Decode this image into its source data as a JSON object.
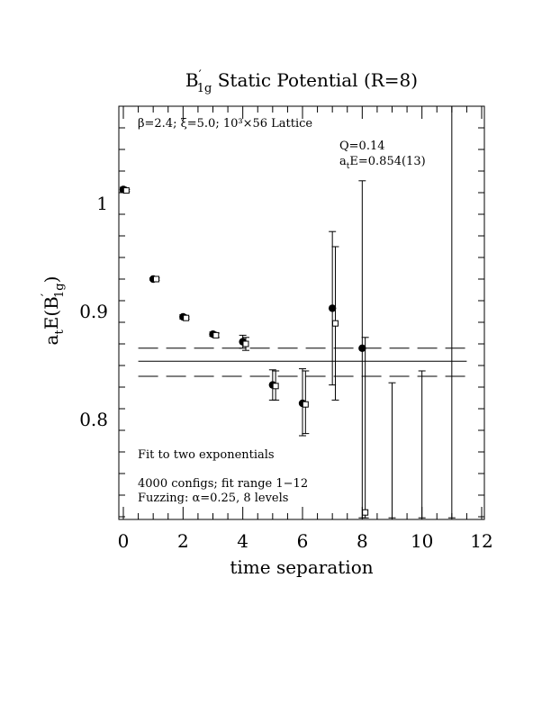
{
  "chart_data": {
    "type": "scatter",
    "title": {
      "prefix": "B",
      "prime": "′",
      "subscript": "1g",
      "suffix": " Static Potential (R=8)"
    },
    "xlabel": "time separation",
    "ylabel": {
      "a": "a",
      "a_sub": "t",
      "E": "E(B",
      "prime": "′",
      "sub": "1g",
      "close": ")"
    },
    "xlim": [
      0,
      12
    ],
    "ylim": [
      0.709,
      1.09
    ],
    "x_ticks": [
      0,
      2,
      4,
      6,
      8,
      10,
      12
    ],
    "y_ticks": [
      0.8,
      0.9,
      1
    ],
    "y_tick_labels": [
      "0.8",
      "0.9",
      "1"
    ],
    "annotations": {
      "lattice": "β=2.4; ξ=5.0; 10³×56 Lattice",
      "q": "Q=0.14",
      "energy_prefix": "a",
      "energy_sub": "t",
      "energy_rest": "E=0.854(13)",
      "fit_line1": "Fit to two exponentials",
      "fit_line2": "4000 configs; fit range 1−12",
      "fit_line3": "Fuzzing: α=0.25, 8 levels"
    },
    "fit": {
      "value": 0.854,
      "upper": 0.866,
      "lower": 0.84,
      "x_start": 0.5,
      "x_end": 11.5
    },
    "series": [
      {
        "name": "",
        "marker": "filled-circle",
        "x": [
          0,
          1,
          2,
          3,
          4,
          5,
          6,
          7,
          8,
          9,
          10,
          11
        ],
        "y": [
          1.013,
          0.93,
          0.895,
          0.879,
          0.872,
          0.832,
          0.815,
          0.903,
          0.866,
          null,
          null,
          null
        ],
        "yerr_low": [
          1.011,
          0.929,
          0.893,
          0.877,
          0.866,
          0.818,
          0.785,
          0.832,
          0.709,
          0.709,
          0.709,
          0.709
        ],
        "yerr_high": [
          1.015,
          0.931,
          0.897,
          0.881,
          0.878,
          0.846,
          0.847,
          0.974,
          1.021,
          0.834,
          0.845,
          1.09
        ]
      },
      {
        "name": "",
        "marker": "open-square",
        "x": [
          0.1,
          1.1,
          2.1,
          3.1,
          4.1,
          5.1,
          6.1,
          7.1,
          8.1
        ],
        "y": [
          1.012,
          0.93,
          0.894,
          0.878,
          0.87,
          0.831,
          0.814,
          0.889,
          0.714
        ],
        "yerr_low": [
          1.011,
          0.929,
          0.893,
          0.876,
          0.864,
          0.818,
          0.787,
          0.818,
          0.709
        ],
        "yerr_high": [
          1.013,
          0.931,
          0.895,
          0.88,
          0.876,
          0.845,
          0.845,
          0.96,
          0.876
        ]
      }
    ]
  }
}
